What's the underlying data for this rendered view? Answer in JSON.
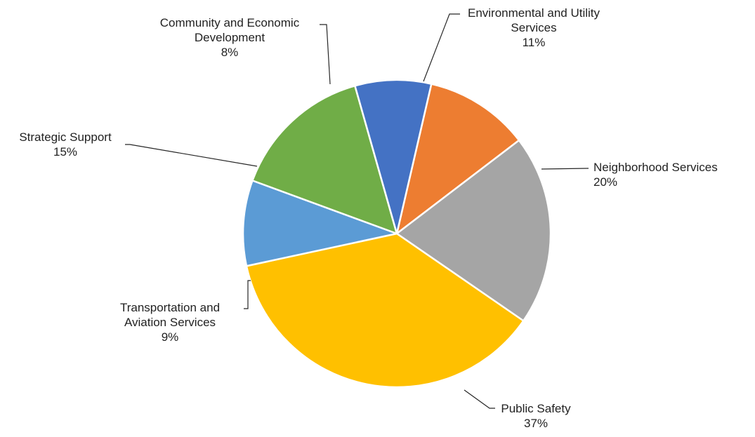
{
  "chart_data": {
    "type": "pie",
    "title": "",
    "slices": [
      {
        "name": "Environmental and Utility Services",
        "name_lines": [
          "Environmental and Utility",
          "Services"
        ],
        "value": 11,
        "label": "11%",
        "color": "#ED7D31"
      },
      {
        "name": "Neighborhood Services",
        "name_lines": [
          "Neighborhood Services"
        ],
        "value": 20,
        "label": "20%",
        "color": "#A5A5A5"
      },
      {
        "name": "Public Safety",
        "name_lines": [
          "Public Safety"
        ],
        "value": 37,
        "label": "37%",
        "color": "#FFC000"
      },
      {
        "name": "Transportation and Aviation Services",
        "name_lines": [
          "Transportation and",
          "Aviation Services"
        ],
        "value": 9,
        "label": "9%",
        "color": "#5B9BD5"
      },
      {
        "name": "Strategic Support",
        "name_lines": [
          "Strategic Support"
        ],
        "value": 15,
        "label": "15%",
        "color": "#70AD47"
      },
      {
        "name": "Community and Economic Development",
        "name_lines": [
          "Community and Economic",
          "Development"
        ],
        "value": 8,
        "label": "8%",
        "color": "#4472C4"
      }
    ],
    "start_angle_deg": 13,
    "direction": "clockwise",
    "legend": "none"
  }
}
